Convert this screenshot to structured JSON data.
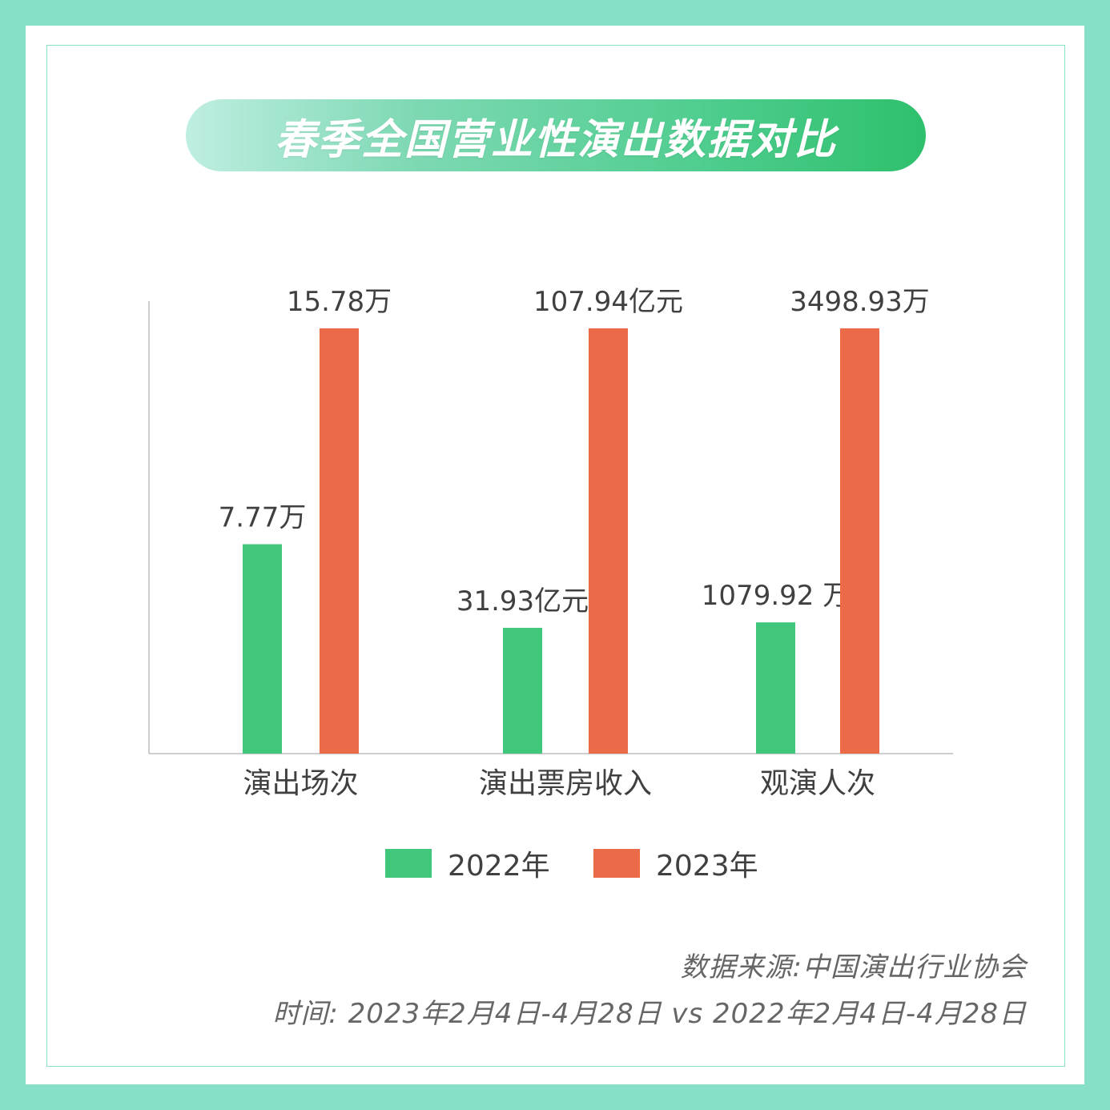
{
  "title": "春季全国营业性演出数据对比",
  "colors": {
    "y2022": "#41c77c",
    "y2023": "#eb6a48",
    "border": "#86dfc6",
    "axis": "#bdbdbd"
  },
  "chart_data": {
    "type": "bar",
    "categories": [
      "演出场次",
      "演出票房收入",
      "观演人次"
    ],
    "series": [
      {
        "name": "2022年",
        "values": [
          7.77,
          31.93,
          1079.92
        ],
        "labels": [
          "7.77万",
          "31.93亿元",
          "1079.92 万"
        ]
      },
      {
        "name": "2023年",
        "values": [
          15.78,
          107.94,
          3498.93
        ],
        "labels": [
          "15.78万",
          "107.94亿元",
          "3498.93万"
        ]
      }
    ],
    "units": [
      "万",
      "亿元",
      "万"
    ],
    "legend": "bottom-center",
    "grid": false
  },
  "legend": {
    "items": [
      "2022年",
      "2023年"
    ]
  },
  "footer": {
    "source": "数据来源:中国演出行业协会",
    "time": "时间:  2023年2月4日-4月28日 vs 2022年2月4日-4月28日"
  }
}
